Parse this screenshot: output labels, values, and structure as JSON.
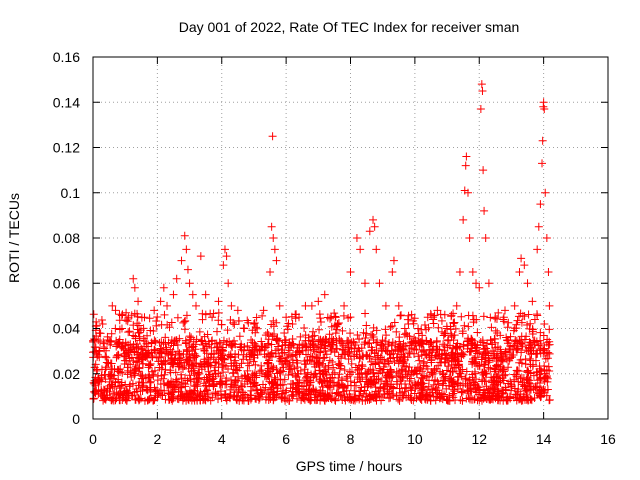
{
  "chart_data": {
    "type": "scatter",
    "title": "Day 001 of 2022, Rate Of TEC Index for receiver sman",
    "xlabel": "GPS time / hours",
    "ylabel": "ROTI / TECUs",
    "xlim": [
      0,
      16
    ],
    "ylim": [
      0,
      0.16
    ],
    "xticks": [
      0,
      2,
      4,
      6,
      8,
      10,
      12,
      14,
      16
    ],
    "yticks": [
      0,
      0.02,
      0.04,
      0.06,
      0.08,
      0.1,
      0.12,
      0.14,
      0.16
    ],
    "xtick_labels": [
      "0",
      "2",
      "4",
      "6",
      "8",
      "10",
      "12",
      "14",
      "16"
    ],
    "ytick_labels": [
      "0",
      "0.02",
      "0.04",
      "0.06",
      "0.08",
      "0.1",
      "0.12",
      "0.14",
      "0.16"
    ],
    "grid": true,
    "legend": "none",
    "marker": "plus",
    "series": [
      {
        "name": "ROTI",
        "color": "#ff0000",
        "x_range": [
          0.0,
          14.2
        ],
        "typical_range": [
          0.008,
          0.035
        ],
        "points": [
          [
            0.1,
            0.03
          ],
          [
            0.2,
            0.038
          ],
          [
            0.3,
            0.042
          ],
          [
            0.6,
            0.05
          ],
          [
            0.7,
            0.048
          ],
          [
            0.9,
            0.04
          ],
          [
            1.1,
            0.045
          ],
          [
            1.25,
            0.062
          ],
          [
            1.3,
            0.058
          ],
          [
            1.4,
            0.052
          ],
          [
            1.6,
            0.045
          ],
          [
            1.9,
            0.048
          ],
          [
            2.1,
            0.052
          ],
          [
            2.2,
            0.058
          ],
          [
            2.3,
            0.05
          ],
          [
            2.5,
            0.055
          ],
          [
            2.6,
            0.062
          ],
          [
            2.75,
            0.07
          ],
          [
            2.85,
            0.081
          ],
          [
            2.9,
            0.075
          ],
          [
            2.95,
            0.066
          ],
          [
            3.0,
            0.06
          ],
          [
            3.1,
            0.055
          ],
          [
            3.2,
            0.05
          ],
          [
            3.35,
            0.072
          ],
          [
            3.5,
            0.055
          ],
          [
            3.7,
            0.045
          ],
          [
            3.9,
            0.052
          ],
          [
            4.05,
            0.068
          ],
          [
            4.1,
            0.075
          ],
          [
            4.15,
            0.072
          ],
          [
            4.2,
            0.06
          ],
          [
            4.3,
            0.05
          ],
          [
            4.5,
            0.048
          ],
          [
            4.7,
            0.04
          ],
          [
            5.0,
            0.042
          ],
          [
            5.3,
            0.048
          ],
          [
            5.5,
            0.065
          ],
          [
            5.55,
            0.085
          ],
          [
            5.6,
            0.08
          ],
          [
            5.65,
            0.075
          ],
          [
            5.58,
            0.125
          ],
          [
            5.7,
            0.07
          ],
          [
            5.8,
            0.05
          ],
          [
            6.0,
            0.045
          ],
          [
            6.2,
            0.042
          ],
          [
            6.4,
            0.045
          ],
          [
            6.6,
            0.05
          ],
          [
            6.8,
            0.05
          ],
          [
            7.0,
            0.052
          ],
          [
            7.2,
            0.055
          ],
          [
            7.4,
            0.045
          ],
          [
            7.6,
            0.042
          ],
          [
            7.8,
            0.05
          ],
          [
            8.0,
            0.065
          ],
          [
            8.2,
            0.08
          ],
          [
            8.3,
            0.075
          ],
          [
            8.45,
            0.06
          ],
          [
            8.6,
            0.083
          ],
          [
            8.7,
            0.088
          ],
          [
            8.75,
            0.085
          ],
          [
            8.8,
            0.075
          ],
          [
            8.9,
            0.06
          ],
          [
            9.1,
            0.05
          ],
          [
            9.3,
            0.065
          ],
          [
            9.35,
            0.07
          ],
          [
            9.5,
            0.05
          ],
          [
            9.8,
            0.042
          ],
          [
            10.1,
            0.04
          ],
          [
            10.4,
            0.045
          ],
          [
            10.7,
            0.048
          ],
          [
            11.0,
            0.04
          ],
          [
            11.3,
            0.05
          ],
          [
            11.4,
            0.065
          ],
          [
            11.5,
            0.088
          ],
          [
            11.55,
            0.101
          ],
          [
            11.58,
            0.112
          ],
          [
            11.6,
            0.116
          ],
          [
            11.65,
            0.1
          ],
          [
            11.7,
            0.08
          ],
          [
            11.8,
            0.065
          ],
          [
            11.9,
            0.06
          ],
          [
            12.0,
            0.058
          ],
          [
            12.05,
            0.137
          ],
          [
            12.08,
            0.148
          ],
          [
            12.1,
            0.145
          ],
          [
            12.12,
            0.11
          ],
          [
            12.15,
            0.092
          ],
          [
            12.2,
            0.08
          ],
          [
            12.3,
            0.06
          ],
          [
            12.5,
            0.045
          ],
          [
            12.8,
            0.048
          ],
          [
            13.1,
            0.05
          ],
          [
            13.25,
            0.065
          ],
          [
            13.3,
            0.071
          ],
          [
            13.4,
            0.068
          ],
          [
            13.5,
            0.06
          ],
          [
            13.65,
            0.052
          ],
          [
            13.8,
            0.075
          ],
          [
            13.85,
            0.085
          ],
          [
            13.9,
            0.095
          ],
          [
            13.95,
            0.113
          ],
          [
            13.97,
            0.123
          ],
          [
            13.99,
            0.138
          ],
          [
            14.0,
            0.14
          ],
          [
            14.02,
            0.137
          ],
          [
            14.05,
            0.1
          ],
          [
            14.1,
            0.08
          ],
          [
            14.15,
            0.065
          ],
          [
            14.18,
            0.05
          ]
        ]
      }
    ]
  }
}
